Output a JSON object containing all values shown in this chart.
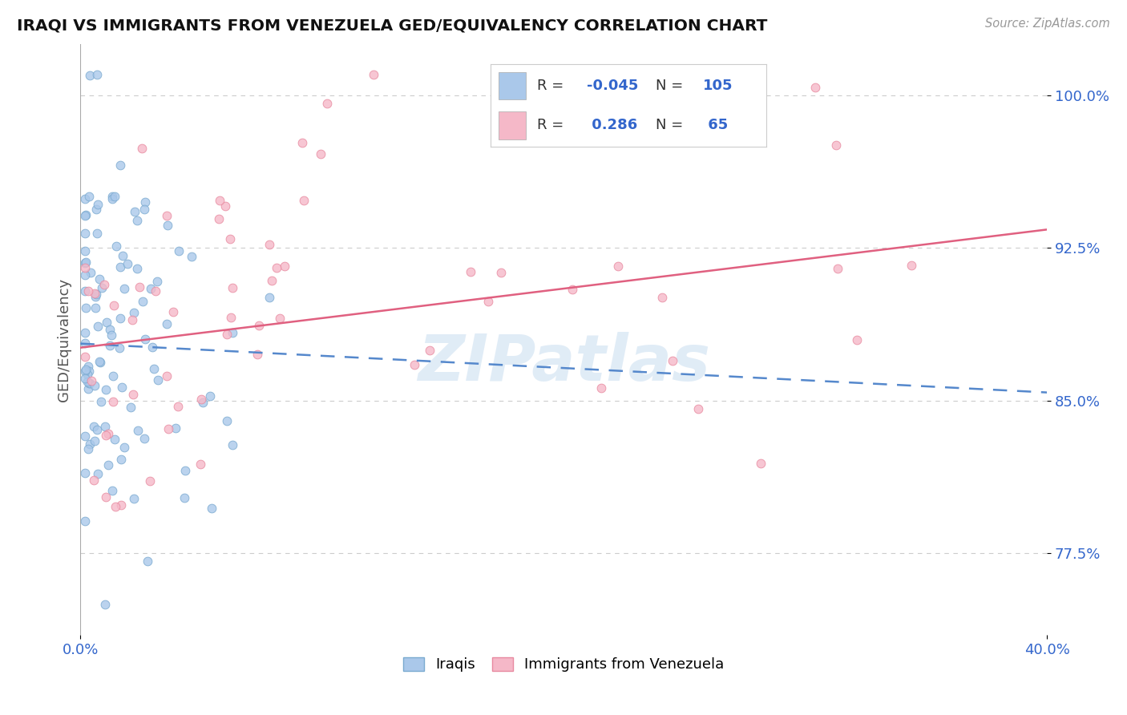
{
  "title": "IRAQI VS IMMIGRANTS FROM VENEZUELA GED/EQUIVALENCY CORRELATION CHART",
  "source": "Source: ZipAtlas.com",
  "xlim": [
    0.0,
    0.4
  ],
  "ylim": [
    0.735,
    1.025
  ],
  "ytick_vals": [
    1.0,
    0.925,
    0.85,
    0.775
  ],
  "ytick_labels": [
    "100.0%",
    "92.5%",
    "85.0%",
    "77.5%"
  ],
  "xtick_vals": [
    0.0,
    0.4
  ],
  "xtick_labels": [
    "0.0%",
    "40.0%"
  ],
  "iraqis_color": "#aac8ea",
  "iraqis_edge": "#7aaad0",
  "venezuela_color": "#f5b8c8",
  "venezuela_edge": "#e88aa0",
  "iraqis_line_color": "#5588cc",
  "venezuela_line_color": "#e06080",
  "watermark_color": "#c8ddf0",
  "watermark_text": "ZIPatlas",
  "legend_box_blue": "#aac8ea",
  "legend_box_pink": "#f5b8c8",
  "iraqis_R": "-0.045",
  "iraqis_N": "105",
  "venezuela_R": "0.286",
  "venezuela_N": "65",
  "iraq_line_y0": 0.878,
  "iraq_line_y1": 0.854,
  "venez_line_y0": 0.876,
  "venez_line_y1": 0.934
}
